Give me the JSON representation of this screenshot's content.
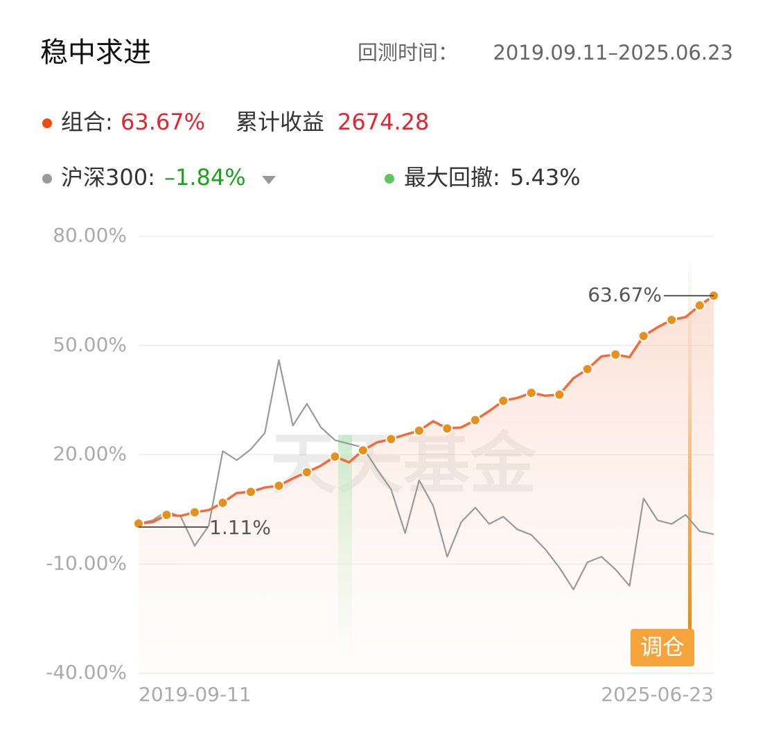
{
  "header": {
    "title": "稳中求进",
    "period_label": "回测时间：",
    "period": "2019.09.11–2025.06.23"
  },
  "chart_data": {
    "type": "line",
    "summary": {
      "portfolio_return": "63.67%",
      "cumulative_label": "累计收益",
      "cumulative": "2674.28",
      "benchmark_return": "–1.84%",
      "drawdown_label": "最大回撤:",
      "drawdown": "5.43%"
    },
    "categories": [
      "2019-09-11",
      null,
      null,
      null,
      null,
      null,
      null,
      null,
      null,
      null,
      null,
      null,
      null,
      null,
      null,
      null,
      null,
      null,
      null,
      null,
      null,
      null,
      null,
      null,
      null,
      null,
      null,
      null,
      null,
      null,
      null,
      null,
      null,
      null,
      null,
      null,
      null,
      null,
      null,
      null,
      null,
      "2025-06-23"
    ],
    "series": [
      {
        "name": "组合:",
        "color": "#f26b3a",
        "marker_color": "#e8901c",
        "values": [
          1.11,
          1.5,
          3.5,
          3.2,
          4.2,
          4.8,
          6.8,
          9.5,
          9.8,
          11.0,
          11.5,
          13.5,
          15.2,
          17.0,
          19.5,
          17.9,
          21.2,
          23.4,
          24.3,
          25.5,
          26.6,
          29.2,
          27.2,
          27.5,
          29.5,
          32.0,
          34.8,
          35.6,
          37.0,
          36.2,
          36.5,
          41.0,
          43.5,
          47.0,
          47.5,
          46.8,
          52.6,
          55.0,
          57.0,
          57.8,
          61.0,
          63.67
        ]
      },
      {
        "name": "沪深300:",
        "color": "#999999",
        "values": [
          1.11,
          2.0,
          4.5,
          3.0,
          -5.0,
          0.5,
          21.0,
          18.5,
          21.5,
          26.0,
          46.0,
          28.0,
          34.0,
          27.5,
          24.0,
          23.0,
          22.0,
          16.0,
          10.5,
          -1.5,
          13.0,
          6.0,
          -8.0,
          1.5,
          5.5,
          1.0,
          3.0,
          -0.5,
          -2.0,
          -6.0,
          -11.0,
          -17.0,
          -9.5,
          -8.0,
          -11.5,
          -16.0,
          8.0,
          2.0,
          1.0,
          3.5,
          -1.0,
          -1.84
        ]
      }
    ],
    "ylim": [
      -40,
      80
    ],
    "yticks": [
      {
        "value": 80,
        "label": "80.00%"
      },
      {
        "value": 50,
        "label": "50.00%"
      },
      {
        "value": 20,
        "label": "20.00%"
      },
      {
        "value": -10,
        "label": "-10.00%"
      },
      {
        "value": -40,
        "label": "-40.00%"
      }
    ],
    "grid": true,
    "start_label": "1.11%",
    "end_label": "63.67%",
    "watermark": "天天基金",
    "button": "调仓"
  }
}
